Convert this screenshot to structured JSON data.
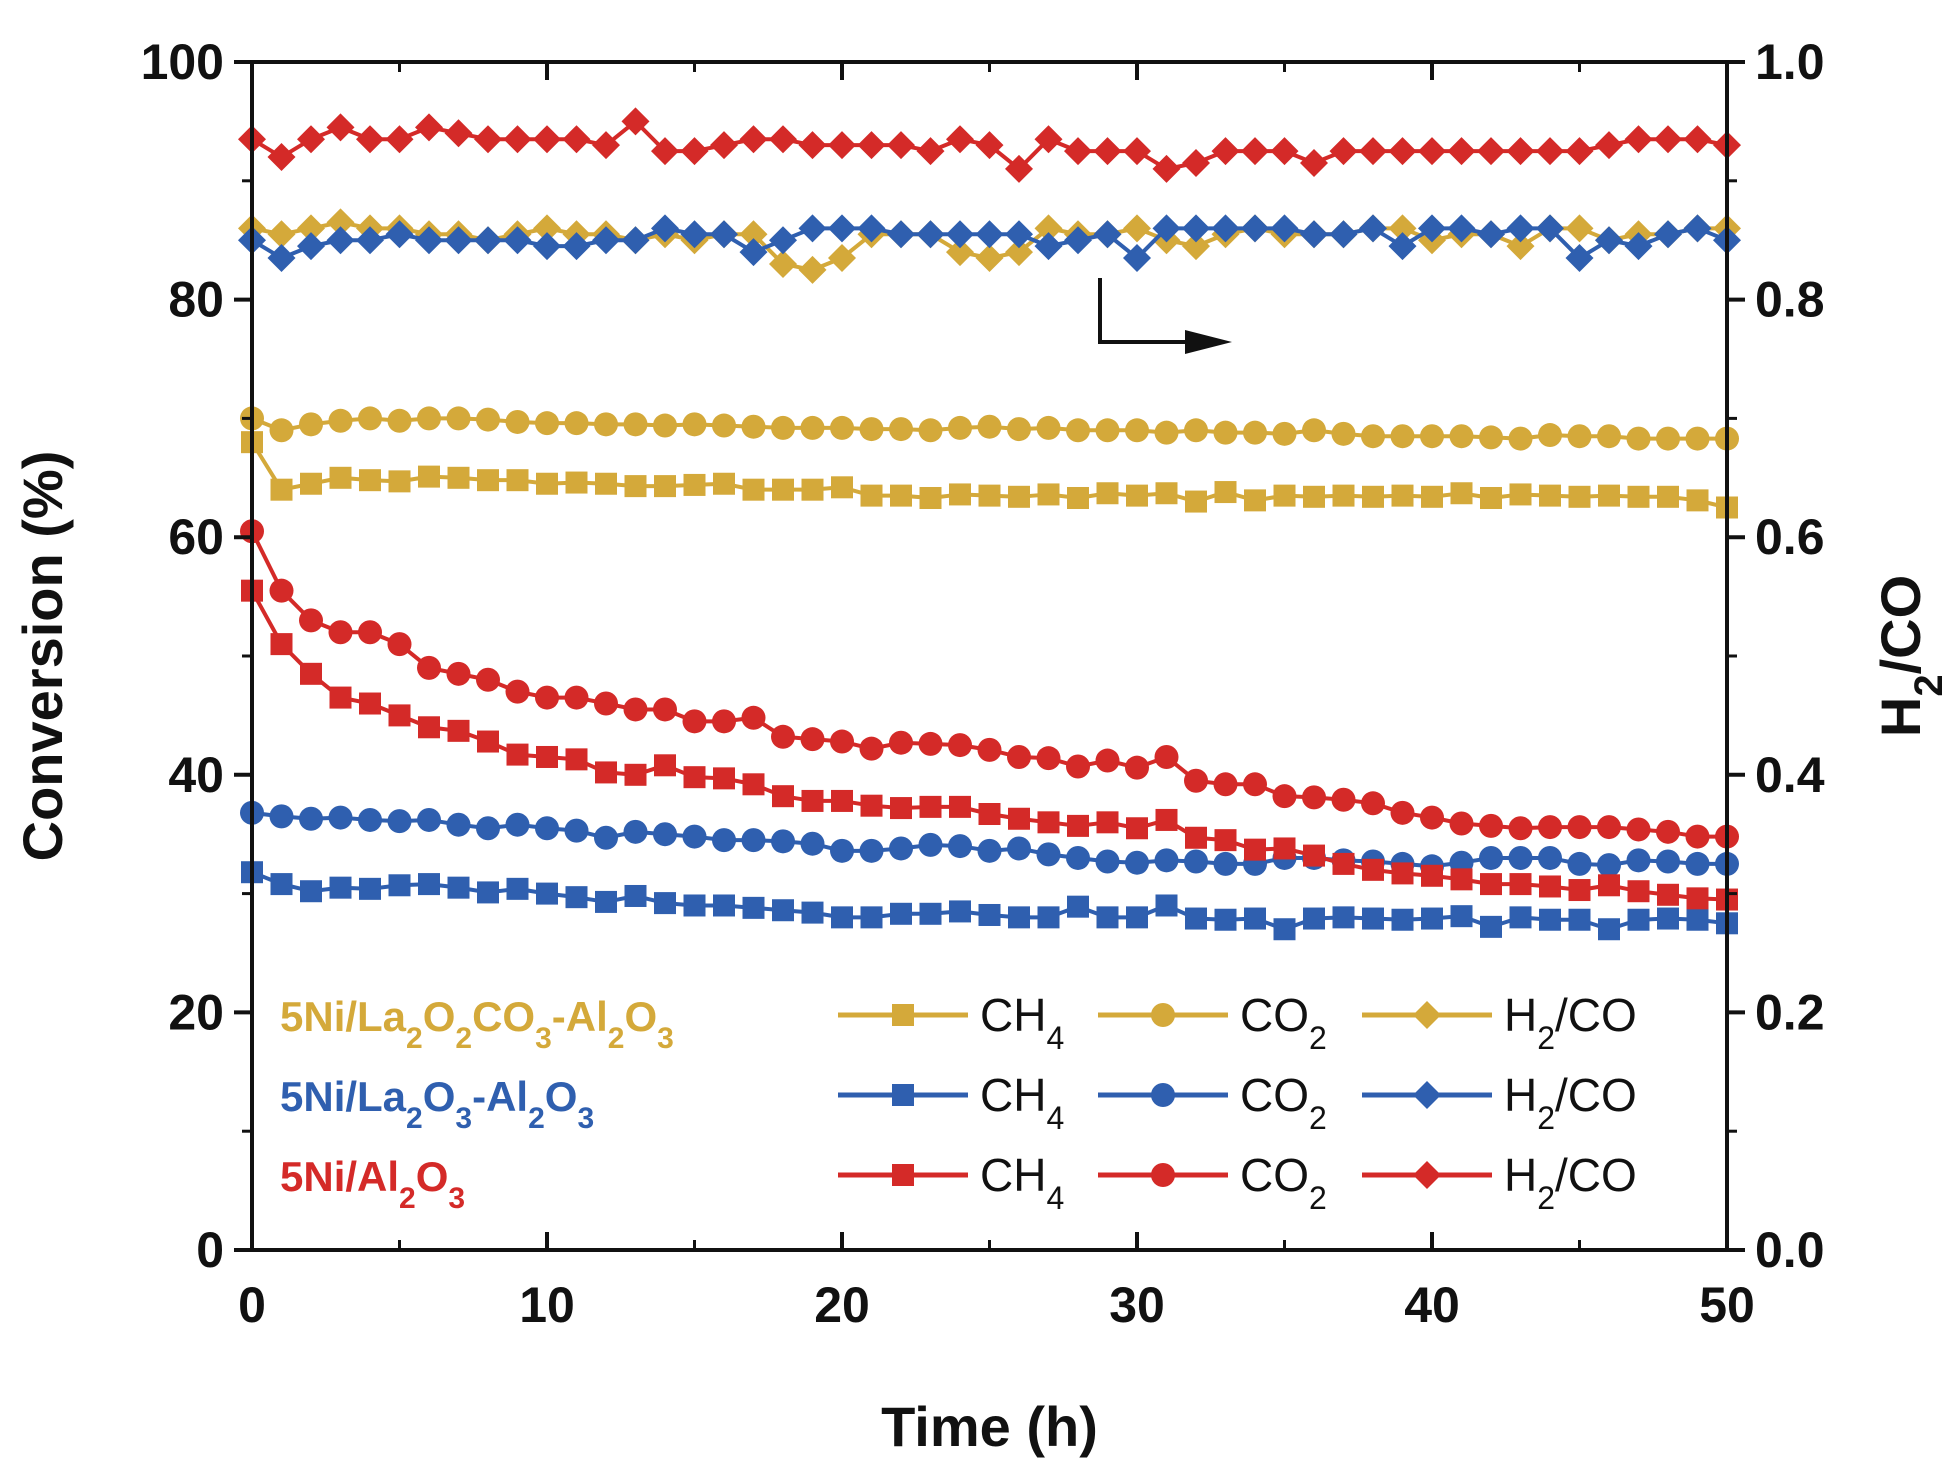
{
  "chart_data": {
    "type": "line",
    "x_axis": {
      "label": "Time (h)",
      "range": [
        0,
        50
      ],
      "ticks": [
        0,
        10,
        20,
        30,
        40,
        50
      ],
      "tick_labels": [
        "0",
        "10",
        "20",
        "30",
        "40",
        "50"
      ]
    },
    "y_axis_left": {
      "label": "Conversion (%)",
      "range": [
        0,
        100
      ],
      "ticks": [
        0,
        20,
        40,
        60,
        80,
        100
      ],
      "tick_labels": [
        "0",
        "20",
        "40",
        "60",
        "80",
        "100"
      ]
    },
    "y_axis_right": {
      "label": {
        "main": "H",
        "sub": "2",
        "rest": "/CO"
      },
      "range": [
        0,
        1
      ],
      "ticks": [
        0,
        0.2,
        0.4,
        0.6,
        0.8,
        1.0
      ],
      "tick_labels": [
        "0.0",
        "0.2",
        "0.4",
        "0.6",
        "0.8",
        "1.0"
      ]
    },
    "arrow_annotation": "arrow pointing right, indicating H2/CO series use the right axis",
    "x": [
      0,
      1,
      2,
      3,
      4,
      5,
      6,
      7,
      8,
      9,
      10,
      11,
      12,
      13,
      14,
      15,
      16,
      17,
      18,
      19,
      20,
      21,
      22,
      23,
      24,
      25,
      26,
      27,
      28,
      29,
      30,
      31,
      32,
      33,
      34,
      35,
      36,
      37,
      38,
      39,
      40,
      41,
      42,
      43,
      44,
      45,
      46,
      47,
      48,
      49,
      50
    ],
    "samples": [
      {
        "name_parts": [
          {
            "t": "5Ni/La",
            "s": ""
          },
          {
            "t": "2",
            "s": "sub"
          },
          {
            "t": "O",
            "s": ""
          },
          {
            "t": "2",
            "s": "sub"
          },
          {
            "t": "CO",
            "s": ""
          },
          {
            "t": "3",
            "s": "sub"
          },
          {
            "t": "-Al",
            "s": ""
          },
          {
            "t": "2",
            "s": "sub"
          },
          {
            "t": "O",
            "s": ""
          },
          {
            "t": "3",
            "s": "sub"
          }
        ],
        "color": "#D4A93A",
        "series": [
          {
            "name": "CH4",
            "marker": "square",
            "axis": "left",
            "values": [
              68,
              64,
              64.5,
              65,
              64.8,
              64.7,
              65.1,
              65,
              64.8,
              64.8,
              64.5,
              64.6,
              64.5,
              64.3,
              64.3,
              64.4,
              64.5,
              64,
              64,
              64,
              64.2,
              63.5,
              63.5,
              63.3,
              63.6,
              63.5,
              63.4,
              63.6,
              63.3,
              63.7,
              63.5,
              63.7,
              63,
              63.8,
              63.1,
              63.5,
              63.4,
              63.5,
              63.4,
              63.5,
              63.4,
              63.7,
              63.3,
              63.6,
              63.5,
              63.4,
              63.5,
              63.4,
              63.4,
              63.1,
              62.5
            ]
          },
          {
            "name": "CO2",
            "marker": "circle",
            "axis": "left",
            "values": [
              70,
              69,
              69.5,
              69.8,
              70,
              69.8,
              70,
              70,
              69.9,
              69.7,
              69.6,
              69.6,
              69.5,
              69.5,
              69.4,
              69.5,
              69.4,
              69.3,
              69.2,
              69.2,
              69.2,
              69.1,
              69.1,
              69,
              69.2,
              69.3,
              69.1,
              69.2,
              69,
              69,
              69,
              68.8,
              69,
              68.8,
              68.8,
              68.7,
              69,
              68.7,
              68.5,
              68.5,
              68.5,
              68.5,
              68.4,
              68.3,
              68.6,
              68.5,
              68.5,
              68.3,
              68.3,
              68.3,
              68.3
            ]
          },
          {
            "name": "H2/CO",
            "marker": "diamond",
            "axis": "right",
            "values": [
              0.86,
              0.855,
              0.86,
              0.865,
              0.86,
              0.86,
              0.855,
              0.855,
              0.85,
              0.855,
              0.86,
              0.855,
              0.855,
              0.85,
              0.855,
              0.85,
              0.855,
              0.855,
              0.83,
              0.825,
              0.835,
              0.855,
              0.855,
              0.855,
              0.84,
              0.835,
              0.84,
              0.86,
              0.855,
              0.855,
              0.86,
              0.85,
              0.845,
              0.855,
              0.86,
              0.855,
              0.855,
              0.855,
              0.86,
              0.86,
              0.85,
              0.855,
              0.855,
              0.845,
              0.86,
              0.86,
              0.85,
              0.855,
              0.855,
              0.86,
              0.86
            ]
          }
        ]
      },
      {
        "name_parts": [
          {
            "t": "5Ni/La",
            "s": ""
          },
          {
            "t": "2",
            "s": "sub"
          },
          {
            "t": "O",
            "s": ""
          },
          {
            "t": "3",
            "s": "sub"
          },
          {
            "t": "-Al",
            "s": ""
          },
          {
            "t": "2",
            "s": "sub"
          },
          {
            "t": "O",
            "s": ""
          },
          {
            "t": "3",
            "s": "sub"
          }
        ],
        "color": "#2F5FAF",
        "series": [
          {
            "name": "CH4",
            "marker": "square",
            "axis": "left",
            "values": [
              31.8,
              30.8,
              30.2,
              30.5,
              30.4,
              30.7,
              30.8,
              30.5,
              30.1,
              30.4,
              30,
              29.7,
              29.3,
              29.8,
              29.2,
              29,
              29,
              28.8,
              28.6,
              28.4,
              28,
              28,
              28.3,
              28.3,
              28.5,
              28.2,
              28,
              28,
              28.9,
              28,
              28,
              29,
              27.9,
              27.8,
              27.9,
              27,
              27.9,
              28,
              27.9,
              27.8,
              27.9,
              28.1,
              27.2,
              28,
              27.8,
              27.8,
              27,
              27.8,
              27.9,
              27.8,
              27.5
            ]
          },
          {
            "name": "CO2",
            "marker": "circle",
            "axis": "left",
            "values": [
              36.8,
              36.5,
              36.3,
              36.4,
              36.2,
              36.1,
              36.2,
              35.8,
              35.5,
              35.8,
              35.5,
              35.3,
              34.7,
              35.2,
              35,
              34.8,
              34.5,
              34.5,
              34.4,
              34.2,
              33.6,
              33.6,
              33.8,
              34.1,
              34,
              33.6,
              33.8,
              33.3,
              33,
              32.7,
              32.6,
              32.8,
              32.7,
              32.5,
              32.5,
              33,
              33,
              32.8,
              32.7,
              32.5,
              32.3,
              32.6,
              33,
              33,
              33,
              32.5,
              32.4,
              32.8,
              32.7,
              32.5,
              32.5
            ]
          },
          {
            "name": "H2/CO",
            "marker": "diamond",
            "axis": "right",
            "values": [
              0.85,
              0.835,
              0.845,
              0.85,
              0.85,
              0.855,
              0.85,
              0.85,
              0.85,
              0.85,
              0.845,
              0.845,
              0.85,
              0.85,
              0.86,
              0.855,
              0.855,
              0.84,
              0.85,
              0.86,
              0.86,
              0.86,
              0.855,
              0.855,
              0.855,
              0.855,
              0.855,
              0.845,
              0.85,
              0.855,
              0.835,
              0.86,
              0.86,
              0.86,
              0.86,
              0.86,
              0.855,
              0.855,
              0.86,
              0.845,
              0.86,
              0.86,
              0.855,
              0.86,
              0.86,
              0.835,
              0.85,
              0.845,
              0.855,
              0.86,
              0.85
            ]
          }
        ]
      },
      {
        "name_parts": [
          {
            "t": "5Ni/Al",
            "s": ""
          },
          {
            "t": "2",
            "s": "sub"
          },
          {
            "t": "O",
            "s": ""
          },
          {
            "t": "3",
            "s": "sub"
          }
        ],
        "color": "#D42A28",
        "series": [
          {
            "name": "CH4",
            "marker": "square",
            "axis": "left",
            "values": [
              55.5,
              51,
              48.5,
              46.5,
              46,
              45,
              44,
              43.7,
              42.8,
              41.7,
              41.5,
              41.3,
              40.2,
              40,
              40.8,
              39.8,
              39.7,
              39.2,
              38.2,
              37.8,
              37.8,
              37.4,
              37.2,
              37.3,
              37.3,
              36.7,
              36.3,
              36,
              35.7,
              36,
              35.5,
              36.2,
              34.7,
              34.5,
              33.7,
              33.8,
              33.2,
              32.5,
              32,
              31.7,
              31.5,
              31.2,
              30.8,
              30.8,
              30.6,
              30.3,
              30.7,
              30.2,
              29.9,
              29.6,
              29.5
            ]
          },
          {
            "name": "CO2",
            "marker": "circle",
            "axis": "left",
            "values": [
              60.5,
              55.5,
              53,
              52,
              52,
              51,
              49,
              48.5,
              48,
              47,
              46.5,
              46.5,
              46,
              45.5,
              45.5,
              44.5,
              44.5,
              44.8,
              43.2,
              43,
              42.8,
              42.2,
              42.7,
              42.6,
              42.5,
              42.1,
              41.5,
              41.4,
              40.7,
              41.2,
              40.6,
              41.5,
              39.5,
              39.2,
              39.2,
              38.2,
              38.1,
              37.9,
              37.6,
              36.8,
              36.4,
              35.9,
              35.7,
              35.5,
              35.6,
              35.6,
              35.6,
              35.4,
              35.2,
              34.8,
              34.8
            ]
          },
          {
            "name": "H2/CO",
            "marker": "diamond",
            "axis": "right",
            "values": [
              0.935,
              0.92,
              0.935,
              0.945,
              0.935,
              0.935,
              0.945,
              0.94,
              0.935,
              0.935,
              0.935,
              0.935,
              0.93,
              0.95,
              0.925,
              0.925,
              0.93,
              0.935,
              0.935,
              0.93,
              0.93,
              0.93,
              0.93,
              0.925,
              0.935,
              0.93,
              0.91,
              0.935,
              0.925,
              0.925,
              0.925,
              0.91,
              0.915,
              0.925,
              0.925,
              0.925,
              0.915,
              0.925,
              0.925,
              0.925,
              0.925,
              0.925,
              0.925,
              0.925,
              0.925,
              0.925,
              0.93,
              0.935,
              0.935,
              0.935,
              0.93
            ]
          }
        ]
      }
    ]
  }
}
